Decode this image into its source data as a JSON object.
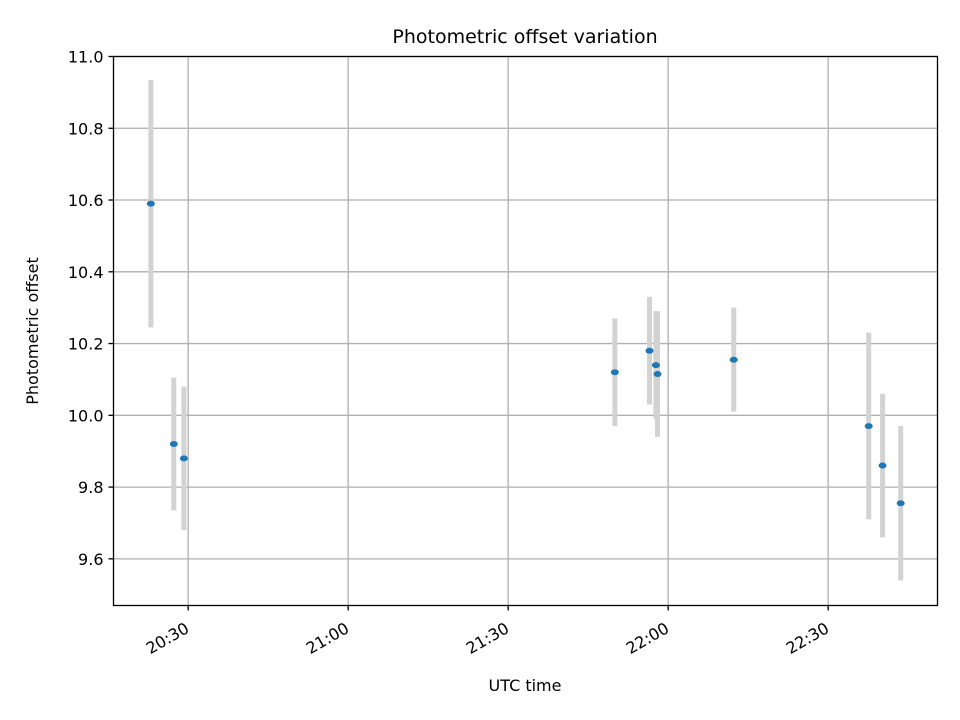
{
  "chart_data": {
    "type": "scatter",
    "title": "Photometric offset variation",
    "xlabel": "UTC time",
    "ylabel": "Photometric offset",
    "xlim_minutes": [
      1216.0,
      1370.5
    ],
    "ylim": [
      9.47,
      11.0
    ],
    "x_ticks": [
      {
        "value": 1230,
        "label": "20:30"
      },
      {
        "value": 1260,
        "label": "21:00"
      },
      {
        "value": 1290,
        "label": "21:30"
      },
      {
        "value": 1320,
        "label": "22:00"
      },
      {
        "value": 1350,
        "label": "22:30"
      }
    ],
    "y_ticks": [
      {
        "value": 9.6,
        "label": "9.6"
      },
      {
        "value": 9.8,
        "label": "9.8"
      },
      {
        "value": 10.0,
        "label": "10.0"
      },
      {
        "value": 10.2,
        "label": "10.2"
      },
      {
        "value": 10.4,
        "label": "10.4"
      },
      {
        "value": 10.6,
        "label": "10.6"
      },
      {
        "value": 10.8,
        "label": "10.8"
      },
      {
        "value": 11.0,
        "label": "11.0"
      }
    ],
    "grid": true,
    "marker_color": "#1f77b4",
    "errorbar_color": "#d3d3d3",
    "points": [
      {
        "time": "20:23",
        "x": 1223.0,
        "y": 10.59,
        "err": 0.345
      },
      {
        "time": "20:27",
        "x": 1227.3,
        "y": 9.92,
        "err": 0.185
      },
      {
        "time": "20:29",
        "x": 1229.2,
        "y": 9.88,
        "err": 0.2
      },
      {
        "time": "21:50",
        "x": 1310.0,
        "y": 10.12,
        "err": 0.15
      },
      {
        "time": "21:56",
        "x": 1316.5,
        "y": 10.18,
        "err": 0.15
      },
      {
        "time": "21:58",
        "x": 1317.7,
        "y": 10.14,
        "err": 0.15
      },
      {
        "time": "21:58",
        "x": 1318.0,
        "y": 10.115,
        "err": 0.175
      },
      {
        "time": "22:12",
        "x": 1332.3,
        "y": 10.155,
        "err": 0.145
      },
      {
        "time": "22:37",
        "x": 1357.6,
        "y": 9.97,
        "err": 0.26
      },
      {
        "time": "22:40",
        "x": 1360.2,
        "y": 9.86,
        "err": 0.2
      },
      {
        "time": "22:43",
        "x": 1363.6,
        "y": 9.755,
        "err": 0.215
      }
    ]
  }
}
